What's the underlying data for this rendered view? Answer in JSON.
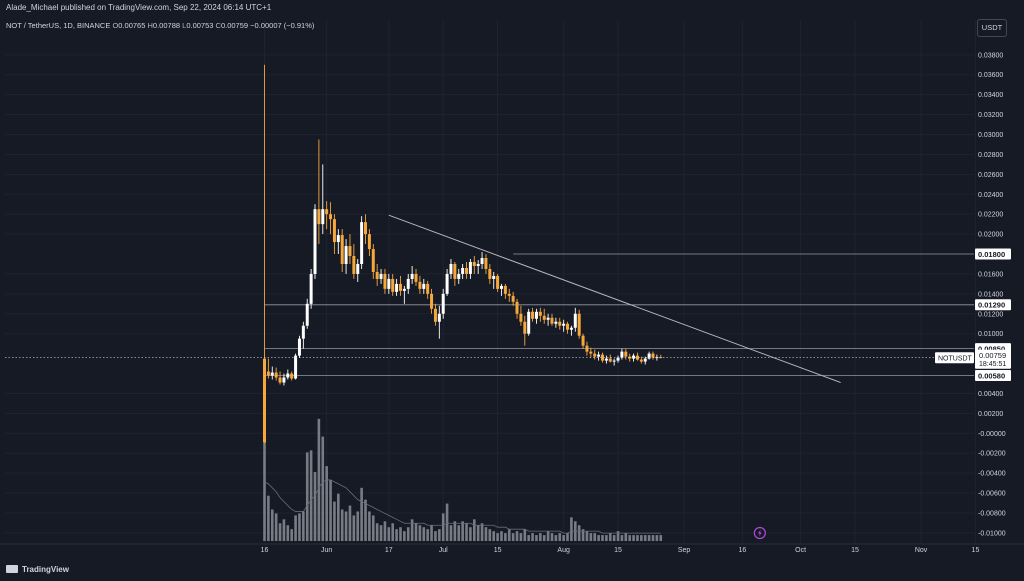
{
  "header": {
    "publisher": "Alade_Michael published on TradingView.com, Sep 22, 2024 06:14 UTC+1"
  },
  "symbol": {
    "name": "NOT / TetherUS, 1D, BINANCE",
    "o_label": "O",
    "o": "0.00765",
    "h_label": "H",
    "h": "0.00788",
    "l_label": "L",
    "l": "0.00753",
    "c_label": "C",
    "c": "0.00759",
    "change": "−0.00007 (−0.91%)"
  },
  "currency_button": "USDT",
  "footer": {
    "logo_text": "TradingView"
  },
  "colors": {
    "background": "#161a25",
    "bull": "#ffffff",
    "bear": "#f7a83b",
    "trendline": "#b2b5be",
    "volume": "#8a8d95"
  },
  "chart_data": {
    "type": "candlestick",
    "ylim": [
      -0.011,
      0.0395
    ],
    "y_ticks": [
      "0.03800",
      "0.03600",
      "0.03400",
      "0.03200",
      "0.03000",
      "0.02800",
      "0.02600",
      "0.02400",
      "0.02200",
      "0.02000",
      "0.01600",
      "0.01400",
      "0.01200",
      "0.01000",
      "0.00400",
      "0.00200",
      "-0.00000",
      "-0.00200",
      "-0.00400",
      "-0.00600",
      "-0.00800",
      "-0.01000"
    ],
    "y_tick_values": [
      0.038,
      0.036,
      0.034,
      0.032,
      0.03,
      0.028,
      0.026,
      0.024,
      0.022,
      0.02,
      0.016,
      0.014,
      0.012,
      0.01,
      0.004,
      0.002,
      0.0,
      -0.002,
      -0.004,
      -0.006,
      -0.008,
      -0.01
    ],
    "x_ticks": [
      {
        "label": "16",
        "day": 0
      },
      {
        "label": "Jun",
        "day": 16
      },
      {
        "label": "17",
        "day": 32
      },
      {
        "label": "Jul",
        "day": 46
      },
      {
        "label": "15",
        "day": 60
      },
      {
        "label": "Aug",
        "day": 77
      },
      {
        "label": "15",
        "day": 91
      },
      {
        "label": "Sep",
        "day": 108
      },
      {
        "label": "16",
        "day": 123
      },
      {
        "label": "Oct",
        "day": 138
      },
      {
        "label": "15",
        "day": 152
      },
      {
        "label": "Nov",
        "day": 169
      },
      {
        "label": "15",
        "day": 183
      }
    ],
    "levels": [
      {
        "label": "0.01800",
        "value": 0.018
      },
      {
        "label": "0.01290",
        "value": 0.0129
      },
      {
        "label": "0.00850",
        "value": 0.0085
      },
      {
        "label": "0.00580",
        "value": 0.0058
      }
    ],
    "current_price": {
      "symbol": "NOTUSDT",
      "price": "0.00759",
      "value": 0.00759,
      "countdown": "18:45:51"
    },
    "trendline": [
      {
        "day": 32,
        "value": 0.0219
      },
      {
        "day": 146,
        "value": 0.0059
      }
    ],
    "candles": [
      [
        0,
        0.0075,
        0.037,
        -0.001,
        -0.0009
      ],
      [
        1,
        0.0062,
        0.0075,
        0.0055,
        0.0058
      ],
      [
        2,
        0.0058,
        0.0067,
        0.0054,
        0.0061
      ],
      [
        3,
        0.0061,
        0.0066,
        0.0053,
        0.0056
      ],
      [
        4,
        0.0056,
        0.0062,
        0.0049,
        0.0051
      ],
      [
        5,
        0.0051,
        0.006,
        0.0048,
        0.0056
      ],
      [
        6,
        0.0056,
        0.0064,
        0.0054,
        0.006
      ],
      [
        7,
        0.006,
        0.0062,
        0.0053,
        0.0055
      ],
      [
        8,
        0.0055,
        0.008,
        0.0054,
        0.0078
      ],
      [
        9,
        0.0078,
        0.0098,
        0.0076,
        0.0095
      ],
      [
        10,
        0.0095,
        0.0112,
        0.0085,
        0.0108
      ],
      [
        11,
        0.0108,
        0.0135,
        0.0105,
        0.013
      ],
      [
        12,
        0.013,
        0.0165,
        0.0125,
        0.016
      ],
      [
        13,
        0.016,
        0.023,
        0.0155,
        0.0225
      ],
      [
        14,
        0.0225,
        0.0295,
        0.019,
        0.021
      ],
      [
        15,
        0.021,
        0.027,
        0.02,
        0.0225
      ],
      [
        16,
        0.0225,
        0.0233,
        0.0205,
        0.022
      ],
      [
        17,
        0.022,
        0.0232,
        0.02,
        0.0215
      ],
      [
        18,
        0.0215,
        0.022,
        0.018,
        0.0192
      ],
      [
        19,
        0.0192,
        0.0205,
        0.018,
        0.0199
      ],
      [
        20,
        0.0199,
        0.0205,
        0.0162,
        0.017
      ],
      [
        21,
        0.017,
        0.0195,
        0.016,
        0.0188
      ],
      [
        22,
        0.0188,
        0.02,
        0.017,
        0.0178
      ],
      [
        23,
        0.0178,
        0.019,
        0.0155,
        0.016
      ],
      [
        24,
        0.016,
        0.0175,
        0.0152,
        0.017
      ],
      [
        25,
        0.017,
        0.0218,
        0.0165,
        0.0212
      ],
      [
        26,
        0.0212,
        0.022,
        0.019,
        0.02
      ],
      [
        27,
        0.02,
        0.0205,
        0.0178,
        0.0185
      ],
      [
        28,
        0.0185,
        0.019,
        0.0155,
        0.0162
      ],
      [
        29,
        0.0162,
        0.017,
        0.0148,
        0.0155
      ],
      [
        30,
        0.0155,
        0.0165,
        0.015,
        0.016
      ],
      [
        31,
        0.016,
        0.0165,
        0.014,
        0.0145
      ],
      [
        32,
        0.0145,
        0.016,
        0.014,
        0.0155
      ],
      [
        33,
        0.0155,
        0.016,
        0.0138,
        0.0142
      ],
      [
        34,
        0.0142,
        0.0155,
        0.0138,
        0.015
      ],
      [
        35,
        0.015,
        0.0158,
        0.0138,
        0.0143
      ],
      [
        36,
        0.0143,
        0.0148,
        0.013,
        0.0145
      ],
      [
        37,
        0.0145,
        0.016,
        0.014,
        0.0155
      ],
      [
        38,
        0.0155,
        0.0168,
        0.015,
        0.016
      ],
      [
        39,
        0.016,
        0.0165,
        0.0148,
        0.0152
      ],
      [
        40,
        0.0152,
        0.0158,
        0.014,
        0.0145
      ],
      [
        41,
        0.0145,
        0.0155,
        0.014,
        0.015
      ],
      [
        42,
        0.015,
        0.0153,
        0.0135,
        0.014
      ],
      [
        43,
        0.014,
        0.0145,
        0.012,
        0.0125
      ],
      [
        44,
        0.0125,
        0.013,
        0.0108,
        0.0112
      ],
      [
        45,
        0.0112,
        0.0128,
        0.0095,
        0.012
      ],
      [
        46,
        0.012,
        0.0145,
        0.0115,
        0.014
      ],
      [
        47,
        0.014,
        0.0165,
        0.0138,
        0.016
      ],
      [
        48,
        0.016,
        0.0175,
        0.0155,
        0.017
      ],
      [
        49,
        0.017,
        0.0172,
        0.0148,
        0.0155
      ],
      [
        50,
        0.0155,
        0.0165,
        0.015,
        0.016
      ],
      [
        51,
        0.016,
        0.017,
        0.0155,
        0.0166
      ],
      [
        52,
        0.0166,
        0.0172,
        0.0155,
        0.016
      ],
      [
        53,
        0.016,
        0.0175,
        0.0155,
        0.0172
      ],
      [
        54,
        0.0172,
        0.0178,
        0.016,
        0.0168
      ],
      [
        55,
        0.0168,
        0.0174,
        0.016,
        0.017
      ],
      [
        56,
        0.017,
        0.0182,
        0.0165,
        0.0176
      ],
      [
        57,
        0.0176,
        0.018,
        0.016,
        0.0165
      ],
      [
        58,
        0.0165,
        0.017,
        0.015,
        0.0155
      ],
      [
        59,
        0.0155,
        0.0162,
        0.0145,
        0.0158
      ],
      [
        60,
        0.0158,
        0.016,
        0.0142,
        0.0145
      ],
      [
        61,
        0.0145,
        0.015,
        0.0138,
        0.0148
      ],
      [
        62,
        0.0148,
        0.015,
        0.0135,
        0.014
      ],
      [
        63,
        0.014,
        0.0145,
        0.0132,
        0.0138
      ],
      [
        64,
        0.0138,
        0.0142,
        0.0128,
        0.0132
      ],
      [
        65,
        0.0132,
        0.0135,
        0.0115,
        0.012
      ],
      [
        66,
        0.012,
        0.0128,
        0.0108,
        0.0112
      ],
      [
        67,
        0.0112,
        0.0118,
        0.0088,
        0.01
      ],
      [
        68,
        0.01,
        0.0125,
        0.0098,
        0.0122
      ],
      [
        69,
        0.0122,
        0.0126,
        0.0112,
        0.0115
      ],
      [
        70,
        0.0115,
        0.0125,
        0.011,
        0.0122
      ],
      [
        71,
        0.0122,
        0.0126,
        0.0112,
        0.0118
      ],
      [
        72,
        0.0118,
        0.0125,
        0.011,
        0.0114
      ],
      [
        73,
        0.0114,
        0.012,
        0.0108,
        0.0116
      ],
      [
        74,
        0.0116,
        0.012,
        0.0108,
        0.011
      ],
      [
        75,
        0.011,
        0.0116,
        0.0106,
        0.0112
      ],
      [
        76,
        0.0112,
        0.0116,
        0.0104,
        0.0108
      ],
      [
        77,
        0.0108,
        0.0114,
        0.0102,
        0.011
      ],
      [
        78,
        0.011,
        0.0112,
        0.01,
        0.0104
      ],
      [
        79,
        0.0104,
        0.0108,
        0.0098,
        0.0106
      ],
      [
        80,
        0.0106,
        0.0126,
        0.0102,
        0.012
      ],
      [
        81,
        0.012,
        0.0124,
        0.0095,
        0.0098
      ],
      [
        82,
        0.0098,
        0.01,
        0.0085,
        0.0088
      ],
      [
        83,
        0.0088,
        0.0092,
        0.0078,
        0.0082
      ],
      [
        84,
        0.0082,
        0.0086,
        0.0076,
        0.008
      ],
      [
        85,
        0.008,
        0.0084,
        0.0074,
        0.0077
      ],
      [
        86,
        0.0077,
        0.0082,
        0.0073,
        0.0079
      ],
      [
        87,
        0.0079,
        0.0081,
        0.0071,
        0.0073
      ],
      [
        88,
        0.0073,
        0.0078,
        0.007,
        0.0075
      ],
      [
        89,
        0.0075,
        0.0079,
        0.0071,
        0.0072
      ],
      [
        90,
        0.0072,
        0.0075,
        0.0068,
        0.0073
      ],
      [
        91,
        0.0073,
        0.0078,
        0.0071,
        0.0076
      ],
      [
        92,
        0.0076,
        0.0085,
        0.0074,
        0.0082
      ],
      [
        93,
        0.0082,
        0.0085,
        0.0074,
        0.0077
      ],
      [
        94,
        0.0077,
        0.008,
        0.0072,
        0.0075
      ],
      [
        95,
        0.0075,
        0.008,
        0.0072,
        0.0078
      ],
      [
        96,
        0.0078,
        0.0081,
        0.0073,
        0.0074
      ],
      [
        97,
        0.0074,
        0.0077,
        0.007,
        0.0072
      ],
      [
        98,
        0.0072,
        0.0077,
        0.0069,
        0.0075
      ],
      [
        99,
        0.0075,
        0.0082,
        0.0074,
        0.008
      ],
      [
        100,
        0.008,
        0.0082,
        0.0074,
        0.0076
      ],
      [
        101,
        0.0076,
        0.0079,
        0.0073,
        0.00765
      ],
      [
        102,
        0.00765,
        0.00788,
        0.00753,
        0.00759
      ]
    ],
    "volume_scale": 28,
    "volume": [
      52,
      23,
      16,
      14,
      9,
      11,
      8,
      6,
      13,
      14,
      15,
      45,
      46,
      35,
      62,
      53,
      38,
      31,
      20,
      24,
      16,
      15,
      18,
      13,
      15,
      27,
      21,
      15,
      13,
      9,
      8,
      10,
      7,
      9,
      6,
      7,
      5,
      7,
      11,
      9,
      8,
      7,
      6,
      8,
      5,
      6,
      14,
      19,
      8,
      10,
      8,
      10,
      9,
      7,
      11,
      8,
      9,
      7,
      6,
      5,
      4,
      5,
      4,
      6,
      4,
      5,
      4,
      6,
      3,
      4,
      3,
      4,
      3,
      5,
      4,
      3,
      4,
      3,
      4,
      12,
      10,
      8,
      6,
      5,
      4,
      4,
      3,
      3,
      3,
      4,
      3,
      5,
      3,
      4,
      3,
      3,
      3,
      3,
      3,
      3,
      3,
      3,
      3
    ],
    "volume_ma": [
      30,
      29,
      27,
      25,
      22,
      20,
      18,
      16,
      15,
      15,
      15,
      18,
      21,
      23,
      27,
      30,
      31,
      31,
      30,
      29,
      28,
      27,
      25,
      23,
      21,
      20,
      19,
      18,
      17,
      16,
      15,
      14,
      13,
      12,
      11,
      10,
      9,
      9,
      9,
      9,
      9,
      9,
      8,
      8,
      8,
      8,
      8,
      9,
      9,
      9,
      9,
      9,
      9,
      9,
      8,
      8,
      8,
      8,
      8,
      8,
      7,
      7,
      7,
      6,
      6,
      6,
      6,
      6,
      5,
      5,
      5,
      5,
      5,
      5,
      5,
      5,
      5,
      4,
      4,
      5,
      5,
      5,
      5,
      5,
      5,
      5,
      5,
      4,
      4,
      4,
      4,
      4,
      4,
      4,
      4,
      4,
      4,
      4,
      4,
      4,
      4,
      4,
      4
    ]
  }
}
